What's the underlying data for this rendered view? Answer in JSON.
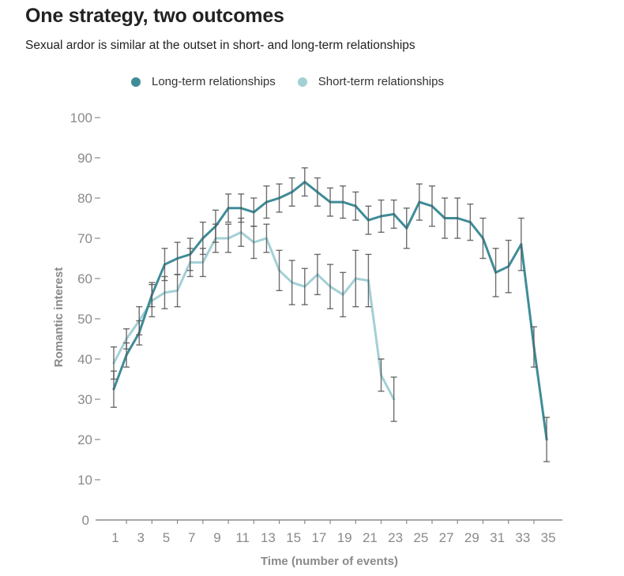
{
  "header": {
    "title": "One strategy, two outcomes",
    "subtitle": "Sexual ardor is similar at the outset in short- and long-term relationships"
  },
  "chart_data": {
    "type": "line",
    "title": "One strategy, two outcomes",
    "subtitle": "Sexual ardor is similar at the outset in short- and long-term relationships",
    "xlabel": "Time (number of events)",
    "ylabel": "Romantic interest",
    "xlim": [
      1,
      35
    ],
    "ylim": [
      0,
      100
    ],
    "x_ticks": [
      1,
      3,
      5,
      7,
      9,
      11,
      13,
      15,
      17,
      19,
      21,
      23,
      25,
      27,
      29,
      31,
      33,
      35
    ],
    "y_ticks": [
      0,
      10,
      20,
      30,
      40,
      50,
      60,
      70,
      80,
      90,
      100
    ],
    "grid": false,
    "legend_position": "top",
    "error_bars": true,
    "series": [
      {
        "name": "Long-term relationships",
        "color": "#3e8c98",
        "x": [
          1,
          2,
          3,
          4,
          5,
          6,
          7,
          8,
          9,
          10,
          11,
          12,
          13,
          14,
          15,
          16,
          17,
          18,
          19,
          20,
          21,
          22,
          23,
          24,
          25,
          26,
          27,
          28,
          29,
          30,
          31,
          32,
          33,
          34,
          35
        ],
        "values": [
          32.5,
          41,
          46.5,
          56,
          63.5,
          65,
          66,
          70,
          73,
          77.5,
          77.5,
          76.5,
          79,
          80,
          81.5,
          84,
          81.5,
          79,
          79,
          78,
          74.5,
          75.5,
          76,
          72.5,
          79,
          78,
          75,
          75,
          74,
          70,
          61.5,
          63,
          68.5,
          43,
          20
        ],
        "error": [
          4.5,
          3,
          3,
          3,
          4,
          4,
          4,
          4,
          4,
          3.5,
          3.5,
          3.5,
          4,
          3.5,
          3.5,
          3.5,
          3.5,
          3.5,
          4,
          3.5,
          3.5,
          4,
          3.5,
          5,
          4.5,
          5,
          5,
          5,
          4.5,
          5,
          6,
          6.5,
          6.5,
          5,
          5.5
        ]
      },
      {
        "name": "Short-term relationships",
        "color": "#a3d0d5",
        "x": [
          1,
          2,
          3,
          4,
          5,
          6,
          7,
          8,
          9,
          10,
          11,
          12,
          13,
          14,
          15,
          16,
          17,
          18,
          19,
          20,
          21,
          22,
          23
        ],
        "values": [
          39,
          45,
          49.5,
          54.5,
          56.5,
          57,
          64,
          64,
          70,
          70,
          71.5,
          69,
          70,
          62,
          59,
          58,
          61,
          58,
          56,
          60,
          59.5,
          36,
          30
        ],
        "error": [
          4,
          2.5,
          3.5,
          4,
          4,
          4,
          3.5,
          3.5,
          3.5,
          3.5,
          3.5,
          4,
          3.5,
          5,
          5.5,
          4.5,
          5,
          5.5,
          5.5,
          7,
          6.5,
          4,
          5.5
        ]
      }
    ]
  }
}
